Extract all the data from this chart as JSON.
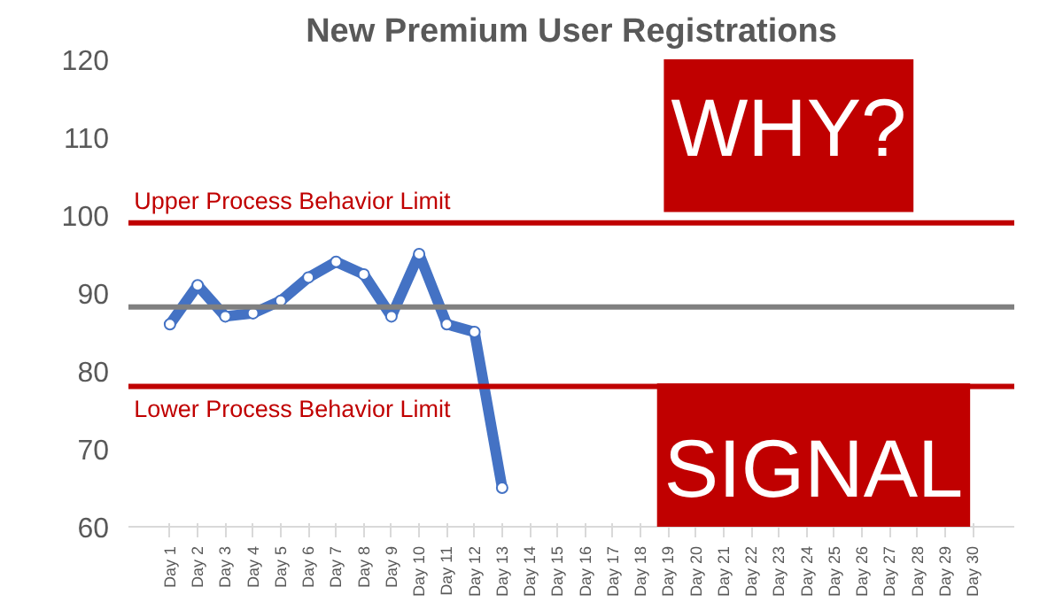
{
  "chart_data": {
    "type": "line",
    "title": "New Premium User Registrations",
    "categories": [
      "Day 1",
      "Day 2",
      "Day 3",
      "Day 4",
      "Day 5",
      "Day 6",
      "Day 7",
      "Day 8",
      "Day 9",
      "Day 10",
      "Day 11",
      "Day 12",
      "Day 13",
      "Day 14",
      "Day 15",
      "Day 16",
      "Day 17",
      "Day 18",
      "Day 19",
      "Day 20",
      "Day 21",
      "Day 22",
      "Day 23",
      "Day 24",
      "Day 25",
      "Day 26",
      "Day 27",
      "Day 28",
      "Day 29",
      "Day 30"
    ],
    "series": [
      {
        "color": "#4472c4",
        "values": [
          86,
          91,
          87,
          87.4,
          89,
          92,
          94,
          92.4,
          87,
          95,
          86,
          85,
          65,
          null,
          null,
          null,
          null,
          null,
          null,
          null,
          null,
          null,
          null,
          null,
          null,
          null,
          null,
          null,
          null,
          null
        ]
      }
    ],
    "ylim": [
      60,
      120
    ],
    "yticks": [
      60,
      70,
      80,
      90,
      100,
      110,
      120
    ],
    "grid": false,
    "marker": "circle",
    "line_style": "solid",
    "ref_lines": [
      {
        "axis": "y",
        "value": 99,
        "label": "Upper Process Behavior Limit",
        "color": "#c00000"
      },
      {
        "axis": "y",
        "value": 88.2,
        "color": "#808080"
      },
      {
        "axis": "y",
        "value": 78,
        "label": "Lower Process Behavior Limit",
        "color": "#c00000"
      }
    ],
    "annotations": [
      "WHY?",
      "SIGNAL"
    ]
  }
}
